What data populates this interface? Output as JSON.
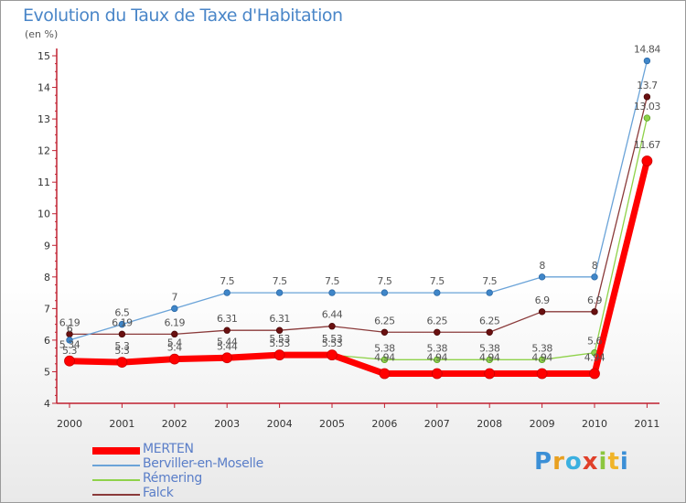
{
  "title": "Evolution du Taux de Taxe d'Habitation",
  "subtitle": "(en %)",
  "brand": {
    "letters": [
      "P",
      "r",
      "o",
      "x",
      "i",
      "t",
      "i"
    ],
    "colors": [
      "#3b8fd6",
      "#e8a020",
      "#3bb0e0",
      "#e0402a",
      "#8cc63f",
      "#f0b428",
      "#3b8fd6"
    ]
  },
  "chart_data": {
    "type": "line",
    "title": "Evolution du Taux de Taxe d'Habitation",
    "ylabel": "(en %)",
    "xlabel": "",
    "x": [
      "2000",
      "2001",
      "2002",
      "2003",
      "2004",
      "2005",
      "2006",
      "2007",
      "2008",
      "2009",
      "2010",
      "2011"
    ],
    "ylim": [
      4,
      15
    ],
    "yticks": [
      "4",
      "5",
      "6",
      "7",
      "8",
      "9",
      "10",
      "11",
      "12",
      "13",
      "14",
      "15"
    ],
    "grid": false,
    "legend_position": "bottom-left",
    "series": [
      {
        "name": "MERTEN",
        "color": "#ff0000",
        "values": [
          5.34,
          5.3,
          5.4,
          5.44,
          5.53,
          5.53,
          4.94,
          4.94,
          4.94,
          4.94,
          4.94,
          11.67
        ],
        "labels": [
          "5.34",
          "5.3",
          "5.4",
          "5.44",
          "5.53",
          "5.53",
          "4.94",
          "4.94",
          "4.94",
          "4.94",
          "4.94",
          "11.67"
        ]
      },
      {
        "name": "Berviller-en-Moselle",
        "color": "#6aa3d8",
        "values": [
          6,
          6.5,
          7,
          7.5,
          7.5,
          7.5,
          7.5,
          7.5,
          7.5,
          8,
          8,
          14.84
        ],
        "labels": [
          "6",
          "6.5",
          "7",
          "7.5",
          "7.5",
          "7.5",
          "7.5",
          "7.5",
          "7.5",
          "8",
          "8",
          "14.84"
        ]
      },
      {
        "name": "Rémering",
        "color": "#8fd24a",
        "values": [
          5.3,
          5.3,
          5.4,
          5.44,
          5.53,
          5.53,
          5.38,
          5.38,
          5.38,
          5.38,
          5.6,
          13.03
        ],
        "labels": [
          "5.3",
          "5.3",
          "5.4",
          "5.44",
          "5.53",
          "5.53",
          "5.38",
          "5.38",
          "5.38",
          "5.38",
          "5.6",
          "13.03"
        ]
      },
      {
        "name": "Falck",
        "color": "#8a3a3a",
        "values": [
          6.19,
          6.19,
          6.19,
          6.31,
          6.31,
          6.44,
          6.25,
          6.25,
          6.25,
          6.9,
          6.9,
          13.7
        ],
        "labels": [
          "6.19",
          "6.19",
          "6.19",
          "6.31",
          "6.31",
          "6.44",
          "6.25",
          "6.25",
          "6.25",
          "6.9",
          "6.9",
          "13.7"
        ]
      }
    ]
  }
}
